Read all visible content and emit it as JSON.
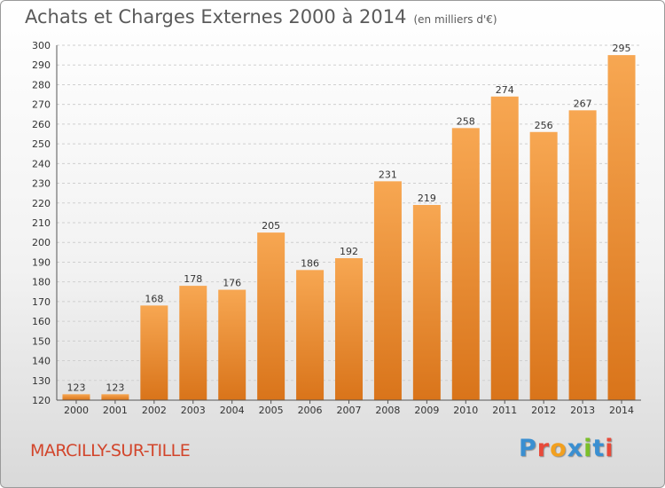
{
  "header": {
    "title": "Achats et Charges Externes 2000 à 2014",
    "unit": "(en milliers d'€)"
  },
  "footer": {
    "commune": "MARCILLY-SUR-TILLE",
    "logo_letters": [
      "P",
      "r",
      "o",
      "x",
      "i",
      "t",
      "i"
    ],
    "logo_colors": [
      "#3a8fd1",
      "#e84a3a",
      "#f2a01f",
      "#3a8fd1",
      "#7bbf2a",
      "#3a8fd1",
      "#e84a3a"
    ]
  },
  "chart_data": {
    "type": "bar",
    "title": "Achats et Charges Externes 2000 à 2014",
    "subtitle": "(en milliers d'€)",
    "categories": [
      "2000",
      "2001",
      "2002",
      "2003",
      "2004",
      "2005",
      "2006",
      "2007",
      "2008",
      "2009",
      "2010",
      "2011",
      "2012",
      "2013",
      "2014"
    ],
    "values": [
      123,
      123,
      168,
      178,
      176,
      205,
      186,
      192,
      231,
      219,
      258,
      274,
      256,
      267,
      295
    ],
    "ylim": [
      120,
      300
    ],
    "yticks": [
      120,
      130,
      140,
      150,
      160,
      170,
      180,
      190,
      200,
      210,
      220,
      230,
      240,
      250,
      260,
      270,
      280,
      290,
      300
    ],
    "grid": true,
    "bar_color_top": "#f7a752",
    "bar_color_bottom": "#d9741a"
  }
}
